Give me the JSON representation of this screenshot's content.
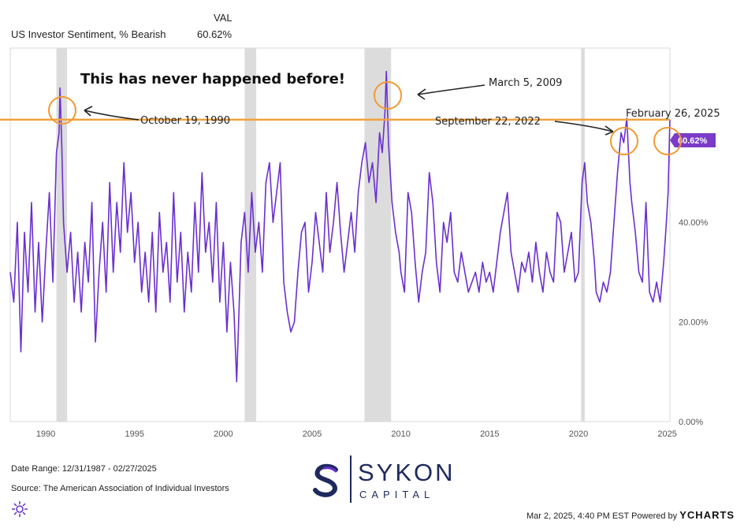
{
  "header": {
    "series_name": "US Investor Sentiment, % Bearish",
    "val_label": "VAL",
    "val_value": "60.62%"
  },
  "chart_data": {
    "type": "line",
    "title": "US Investor Sentiment, % Bearish",
    "x_range": [
      1988.0,
      2025.15
    ],
    "ylim": [
      0,
      75
    ],
    "x_ticks": [
      1990,
      1995,
      2000,
      2005,
      2010,
      2015,
      2020,
      2025
    ],
    "x_tick_labels": [
      "1990",
      "1995",
      "2000",
      "2005",
      "2010",
      "2015",
      "2020",
      "2025"
    ],
    "y_ticks": [
      0,
      20,
      40
    ],
    "y_tick_labels": [
      "0.00%",
      "20.00%",
      "40.00%"
    ],
    "reference_line": {
      "value": 60.62,
      "label": "60.62%"
    },
    "recessions": [
      [
        1990.6,
        1991.2
      ],
      [
        2001.2,
        2001.85
      ],
      [
        2007.95,
        2009.45
      ],
      [
        2020.15,
        2020.35
      ]
    ],
    "series": [
      {
        "name": "US Investor Sentiment, % Bearish",
        "points": [
          [
            1988.0,
            30
          ],
          [
            1988.2,
            24
          ],
          [
            1988.4,
            40
          ],
          [
            1988.6,
            14
          ],
          [
            1988.8,
            38
          ],
          [
            1989.0,
            26
          ],
          [
            1989.2,
            44
          ],
          [
            1989.4,
            22
          ],
          [
            1989.6,
            36
          ],
          [
            1989.8,
            20
          ],
          [
            1990.0,
            34
          ],
          [
            1990.2,
            46
          ],
          [
            1990.4,
            28
          ],
          [
            1990.6,
            54
          ],
          [
            1990.75,
            58
          ],
          [
            1990.8,
            67.0
          ],
          [
            1990.9,
            56
          ],
          [
            1991.0,
            40
          ],
          [
            1991.2,
            30
          ],
          [
            1991.4,
            38
          ],
          [
            1991.6,
            24
          ],
          [
            1991.8,
            34
          ],
          [
            1992.0,
            22
          ],
          [
            1992.2,
            36
          ],
          [
            1992.4,
            28
          ],
          [
            1992.6,
            44
          ],
          [
            1992.8,
            16
          ],
          [
            1993.0,
            30
          ],
          [
            1993.2,
            40
          ],
          [
            1993.4,
            26
          ],
          [
            1993.6,
            48
          ],
          [
            1993.8,
            30
          ],
          [
            1994.0,
            44
          ],
          [
            1994.2,
            34
          ],
          [
            1994.4,
            52
          ],
          [
            1994.6,
            38
          ],
          [
            1994.8,
            46
          ],
          [
            1995.0,
            32
          ],
          [
            1995.2,
            40
          ],
          [
            1995.4,
            26
          ],
          [
            1995.6,
            34
          ],
          [
            1995.8,
            24
          ],
          [
            1996.0,
            38
          ],
          [
            1996.2,
            22
          ],
          [
            1996.4,
            42
          ],
          [
            1996.6,
            30
          ],
          [
            1996.8,
            36
          ],
          [
            1997.0,
            24
          ],
          [
            1997.2,
            46
          ],
          [
            1997.4,
            28
          ],
          [
            1997.6,
            38
          ],
          [
            1997.8,
            22
          ],
          [
            1998.0,
            34
          ],
          [
            1998.2,
            26
          ],
          [
            1998.4,
            44
          ],
          [
            1998.6,
            30
          ],
          [
            1998.8,
            50
          ],
          [
            1999.0,
            34
          ],
          [
            1999.2,
            40
          ],
          [
            1999.4,
            28
          ],
          [
            1999.6,
            44
          ],
          [
            1999.8,
            24
          ],
          [
            2000.0,
            36
          ],
          [
            2000.2,
            18
          ],
          [
            2000.4,
            32
          ],
          [
            2000.6,
            22
          ],
          [
            2000.75,
            8
          ],
          [
            2000.9,
            24
          ],
          [
            2001.0,
            36
          ],
          [
            2001.2,
            42
          ],
          [
            2001.4,
            30
          ],
          [
            2001.6,
            46
          ],
          [
            2001.8,
            34
          ],
          [
            2002.0,
            40
          ],
          [
            2002.2,
            30
          ],
          [
            2002.4,
            48
          ],
          [
            2002.6,
            52
          ],
          [
            2002.8,
            40
          ],
          [
            2003.0,
            46
          ],
          [
            2003.2,
            52
          ],
          [
            2003.4,
            28
          ],
          [
            2003.6,
            22
          ],
          [
            2003.8,
            18
          ],
          [
            2004.0,
            20
          ],
          [
            2004.2,
            30
          ],
          [
            2004.4,
            38
          ],
          [
            2004.6,
            40
          ],
          [
            2004.8,
            26
          ],
          [
            2005.0,
            32
          ],
          [
            2005.2,
            42
          ],
          [
            2005.4,
            36
          ],
          [
            2005.6,
            30
          ],
          [
            2005.8,
            46
          ],
          [
            2006.0,
            34
          ],
          [
            2006.2,
            40
          ],
          [
            2006.4,
            48
          ],
          [
            2006.6,
            38
          ],
          [
            2006.8,
            30
          ],
          [
            2007.0,
            36
          ],
          [
            2007.2,
            42
          ],
          [
            2007.4,
            34
          ],
          [
            2007.6,
            46
          ],
          [
            2007.8,
            52
          ],
          [
            2008.0,
            56
          ],
          [
            2008.2,
            48
          ],
          [
            2008.4,
            52
          ],
          [
            2008.6,
            44
          ],
          [
            2008.8,
            58
          ],
          [
            2008.95,
            54
          ],
          [
            2009.1,
            62
          ],
          [
            2009.18,
            70.3
          ],
          [
            2009.3,
            56
          ],
          [
            2009.5,
            44
          ],
          [
            2009.7,
            38
          ],
          [
            2009.9,
            34
          ],
          [
            2010.0,
            30
          ],
          [
            2010.2,
            26
          ],
          [
            2010.4,
            46
          ],
          [
            2010.6,
            42
          ],
          [
            2010.8,
            32
          ],
          [
            2011.0,
            24
          ],
          [
            2011.2,
            30
          ],
          [
            2011.4,
            34
          ],
          [
            2011.6,
            50
          ],
          [
            2011.8,
            44
          ],
          [
            2012.0,
            32
          ],
          [
            2012.2,
            26
          ],
          [
            2012.4,
            40
          ],
          [
            2012.6,
            36
          ],
          [
            2012.8,
            42
          ],
          [
            2013.0,
            30
          ],
          [
            2013.2,
            28
          ],
          [
            2013.4,
            34
          ],
          [
            2013.6,
            30
          ],
          [
            2013.8,
            26
          ],
          [
            2014.0,
            28
          ],
          [
            2014.2,
            30
          ],
          [
            2014.4,
            26
          ],
          [
            2014.6,
            32
          ],
          [
            2014.8,
            28
          ],
          [
            2015.0,
            30
          ],
          [
            2015.2,
            26
          ],
          [
            2015.4,
            32
          ],
          [
            2015.6,
            38
          ],
          [
            2015.8,
            42
          ],
          [
            2016.0,
            46
          ],
          [
            2016.2,
            34
          ],
          [
            2016.4,
            30
          ],
          [
            2016.6,
            26
          ],
          [
            2016.8,
            32
          ],
          [
            2017.0,
            30
          ],
          [
            2017.2,
            34
          ],
          [
            2017.4,
            28
          ],
          [
            2017.6,
            36
          ],
          [
            2017.8,
            30
          ],
          [
            2018.0,
            26
          ],
          [
            2018.2,
            34
          ],
          [
            2018.4,
            30
          ],
          [
            2018.6,
            28
          ],
          [
            2018.8,
            42
          ],
          [
            2019.0,
            40
          ],
          [
            2019.2,
            30
          ],
          [
            2019.4,
            34
          ],
          [
            2019.6,
            38
          ],
          [
            2019.8,
            28
          ],
          [
            2020.0,
            30
          ],
          [
            2020.2,
            48
          ],
          [
            2020.35,
            52
          ],
          [
            2020.5,
            44
          ],
          [
            2020.7,
            40
          ],
          [
            2020.9,
            32
          ],
          [
            2021.0,
            26
          ],
          [
            2021.2,
            24
          ],
          [
            2021.4,
            28
          ],
          [
            2021.6,
            26
          ],
          [
            2021.8,
            30
          ],
          [
            2022.0,
            40
          ],
          [
            2022.2,
            50
          ],
          [
            2022.4,
            58
          ],
          [
            2022.55,
            56
          ],
          [
            2022.72,
            60.9
          ],
          [
            2022.9,
            48
          ],
          [
            2023.0,
            44
          ],
          [
            2023.2,
            38
          ],
          [
            2023.4,
            30
          ],
          [
            2023.6,
            28
          ],
          [
            2023.8,
            44
          ],
          [
            2024.0,
            26
          ],
          [
            2024.2,
            24
          ],
          [
            2024.4,
            28
          ],
          [
            2024.6,
            24
          ],
          [
            2024.8,
            32
          ],
          [
            2024.95,
            40
          ],
          [
            2025.05,
            46
          ],
          [
            2025.15,
            60.62
          ]
        ]
      }
    ]
  },
  "annotations": {
    "headline": "This has never happened before!",
    "events": [
      {
        "label": "October 19, 1990",
        "x": 1990.8,
        "y": 67.0
      },
      {
        "label": "March 5, 2009",
        "x": 2009.18,
        "y": 70.3
      },
      {
        "label": "September 22, 2022",
        "x": 2022.72,
        "y": 60.9
      },
      {
        "label": "February 26, 2025",
        "x": 2025.15,
        "y": 60.62
      }
    ]
  },
  "footer": {
    "date_range": "Date Range: 12/31/1987 - 02/27/2025",
    "source": "Source: The American Association of Individual Investors",
    "timestamp": "Mar 2, 2025, 4:40 PM EST Powered by",
    "ycharts": "YCHARTS"
  },
  "logo": {
    "name": "SYKON",
    "sub": "CAPITAL"
  },
  "colors": {
    "series": "#6a2fd0",
    "reference": "#f0a23a",
    "circles": "#f29a2e",
    "recession": "#dcdcdc",
    "badge": "#7a3cc8",
    "brand": "#1e2a5e"
  }
}
